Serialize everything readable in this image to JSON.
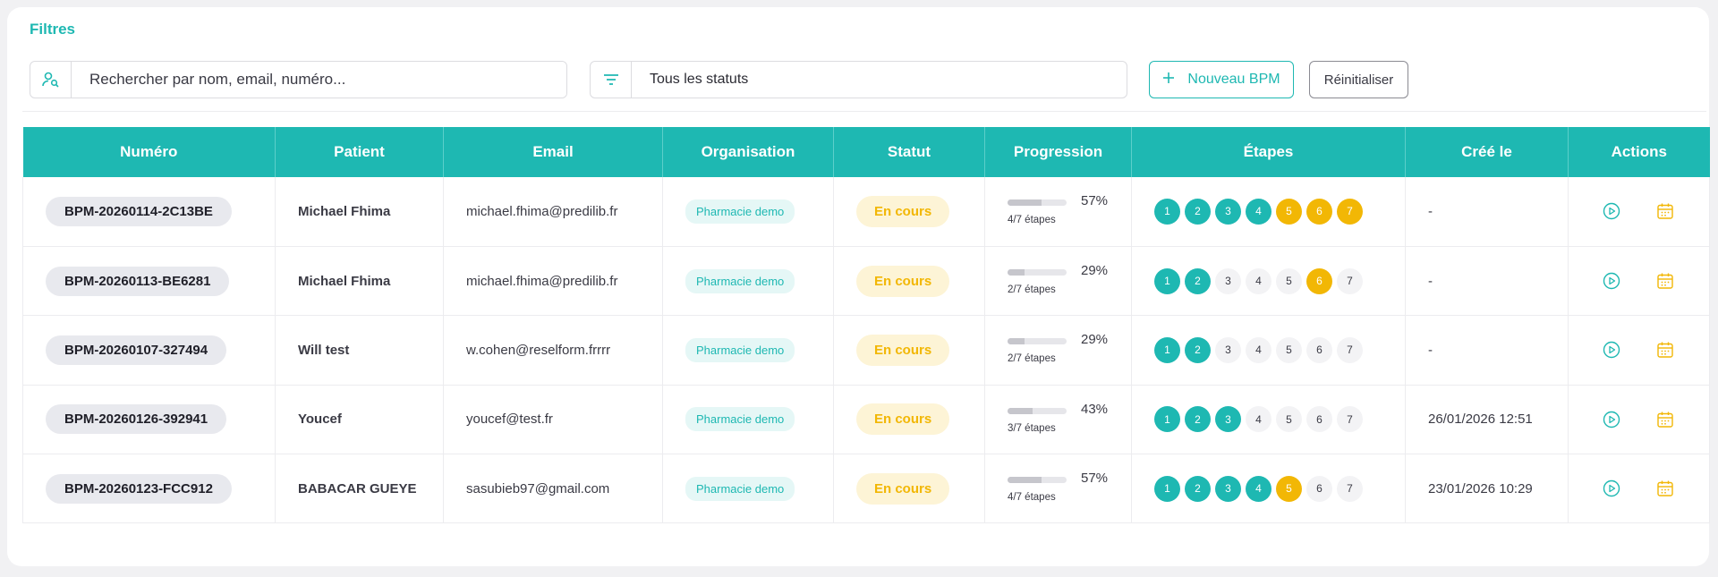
{
  "filters": {
    "title": "Filtres",
    "search_placeholder": "Rechercher par nom, email, numéro...",
    "status_value": "Tous les statuts",
    "new_button": "Nouveau BPM",
    "reset_button": "Réinitialiser"
  },
  "colors": {
    "accent": "#1eb8b2",
    "warning": "#f2b705"
  },
  "table": {
    "headers": [
      "Numéro",
      "Patient",
      "Email",
      "Organisation",
      "Statut",
      "Progression",
      "Étapes",
      "Créé le",
      "Actions"
    ],
    "rows": [
      {
        "numero": "BPM-20260114-2C13BE",
        "patient": "Michael Fhima",
        "email": "michael.fhima@predilib.fr",
        "organisation": "Pharmacie demo",
        "statut": "En cours",
        "progress": 57,
        "progress_label": "57%",
        "steps_label": "4/7 étapes",
        "steps": [
          "done",
          "done",
          "done",
          "done",
          "warn",
          "warn",
          "warn"
        ],
        "created": "-"
      },
      {
        "numero": "BPM-20260113-BE6281",
        "patient": "Michael Fhima",
        "email": "michael.fhima@predilib.fr",
        "organisation": "Pharmacie demo",
        "statut": "En cours",
        "progress": 29,
        "progress_label": "29%",
        "steps_label": "2/7 étapes",
        "steps": [
          "done",
          "done",
          "todo",
          "todo",
          "todo",
          "warn",
          "todo"
        ],
        "created": "-"
      },
      {
        "numero": "BPM-20260107-327494",
        "patient": "Will test",
        "email": "w.cohen@reselform.frrrr",
        "organisation": "Pharmacie demo",
        "statut": "En cours",
        "progress": 29,
        "progress_label": "29%",
        "steps_label": "2/7 étapes",
        "steps": [
          "done",
          "done",
          "todo",
          "todo",
          "todo",
          "todo",
          "todo"
        ],
        "created": "-"
      },
      {
        "numero": "BPM-20260126-392941",
        "patient": "Youcef",
        "email": "youcef@test.fr",
        "organisation": "Pharmacie demo",
        "statut": "En cours",
        "progress": 43,
        "progress_label": "43%",
        "steps_label": "3/7 étapes",
        "steps": [
          "done",
          "done",
          "done",
          "todo",
          "todo",
          "todo",
          "todo"
        ],
        "created": "26/01/2026 12:51"
      },
      {
        "numero": "BPM-20260123-FCC912",
        "patient": "BABACAR GUEYE",
        "email": "sasubieb97@gmail.com",
        "organisation": "Pharmacie demo",
        "statut": "En cours",
        "progress": 57,
        "progress_label": "57%",
        "steps_label": "4/7 étapes",
        "steps": [
          "done",
          "done",
          "done",
          "done",
          "warn",
          "todo",
          "todo"
        ],
        "created": "23/01/2026 10:29"
      }
    ]
  },
  "icons": {
    "search": "user-search-icon",
    "filter": "filter-icon",
    "add": "plus-icon",
    "play": "play-circle-icon",
    "calendar": "calendar-icon"
  }
}
